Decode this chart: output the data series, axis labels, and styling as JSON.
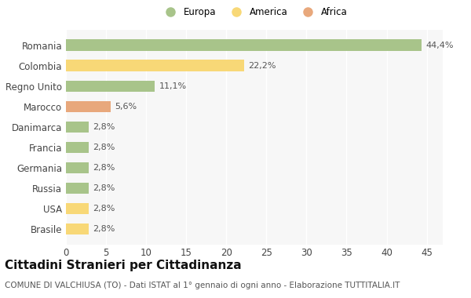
{
  "categories": [
    "Romania",
    "Colombia",
    "Regno Unito",
    "Marocco",
    "Danimarca",
    "Francia",
    "Germania",
    "Russia",
    "USA",
    "Brasile"
  ],
  "values": [
    44.4,
    22.2,
    11.1,
    5.6,
    2.8,
    2.8,
    2.8,
    2.8,
    2.8,
    2.8
  ],
  "labels": [
    "44,4%",
    "22,2%",
    "11,1%",
    "5,6%",
    "2,8%",
    "2,8%",
    "2,8%",
    "2,8%",
    "2,8%",
    "2,8%"
  ],
  "colors": [
    "#a8c48a",
    "#f8d877",
    "#a8c48a",
    "#e8a87c",
    "#a8c48a",
    "#a8c48a",
    "#a8c48a",
    "#a8c48a",
    "#f8d877",
    "#f8d877"
  ],
  "legend": [
    {
      "label": "Europa",
      "color": "#a8c48a"
    },
    {
      "label": "America",
      "color": "#f8d877"
    },
    {
      "label": "Africa",
      "color": "#e8a87c"
    }
  ],
  "xlim": [
    0,
    47
  ],
  "xticks": [
    0,
    5,
    10,
    15,
    20,
    25,
    30,
    35,
    40,
    45
  ],
  "title": "Cittadini Stranieri per Cittadinanza",
  "subtitle": "COMUNE DI VALCHIUSA (TO) - Dati ISTAT al 1° gennaio di ogni anno - Elaborazione TUTTITALIA.IT",
  "bg_color": "#ffffff",
  "plot_bg_color": "#f7f7f7",
  "grid_color": "#ffffff",
  "title_fontsize": 11,
  "subtitle_fontsize": 7.5,
  "label_fontsize": 8,
  "tick_fontsize": 8.5,
  "bar_height": 0.55
}
